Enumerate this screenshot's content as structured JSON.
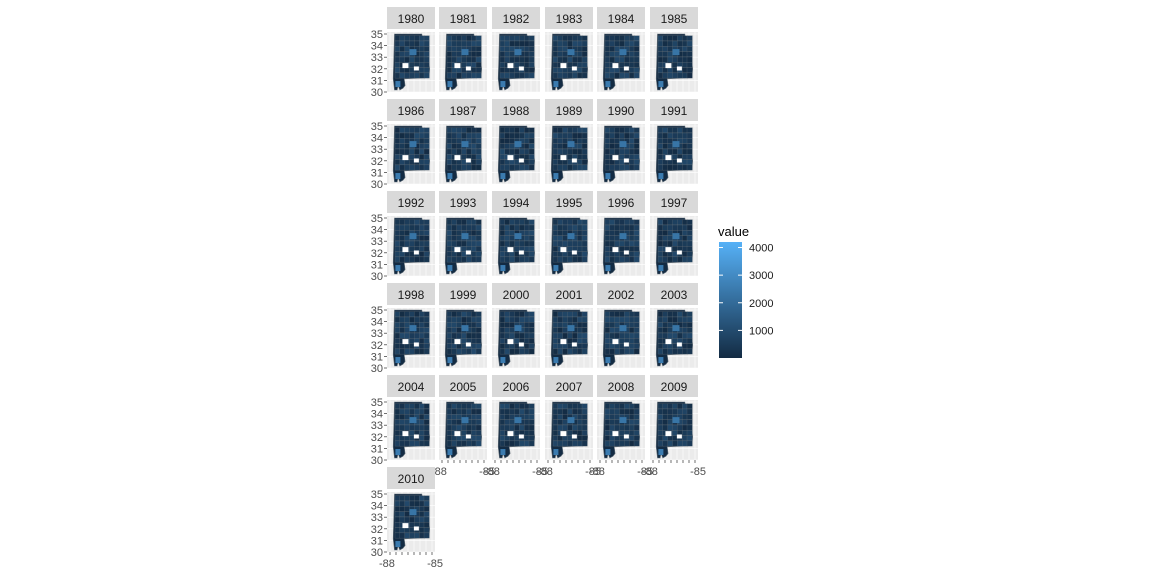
{
  "chart_data": {
    "type": "heatmap",
    "subtype": "faceted choropleth map (county fill by value)",
    "facets": [
      "1980",
      "1981",
      "1982",
      "1983",
      "1984",
      "1985",
      "1986",
      "1987",
      "1988",
      "1989",
      "1990",
      "1991",
      "1992",
      "1993",
      "1994",
      "1995",
      "1996",
      "1997",
      "1998",
      "1999",
      "2000",
      "2001",
      "2002",
      "2003",
      "2004",
      "2005",
      "2006",
      "2007",
      "2008",
      "2009",
      "2010"
    ],
    "y_ticks": [
      "35",
      "34",
      "33",
      "32",
      "31",
      "30"
    ],
    "x_tick_text": "-88",
    "x_tick_text_end": "-85",
    "ylim": [
      30,
      35
    ],
    "xlim": [
      -88.5,
      -84.9
    ],
    "legend": {
      "title": "value",
      "breaks": [
        "4000",
        "3000",
        "2000",
        "1000"
      ],
      "break_values": [
        4000,
        3000,
        2000,
        1000
      ],
      "range": [
        0,
        4200
      ],
      "color_low": "#132b43",
      "color_high": "#56b1f7",
      "position": "right"
    },
    "colors": {
      "panel_bg": "#ebebeb",
      "grid": "#ffffff",
      "strip_bg": "#d9d9d9",
      "county_border": "#5f6b75",
      "missing": "#ffffff"
    }
  }
}
